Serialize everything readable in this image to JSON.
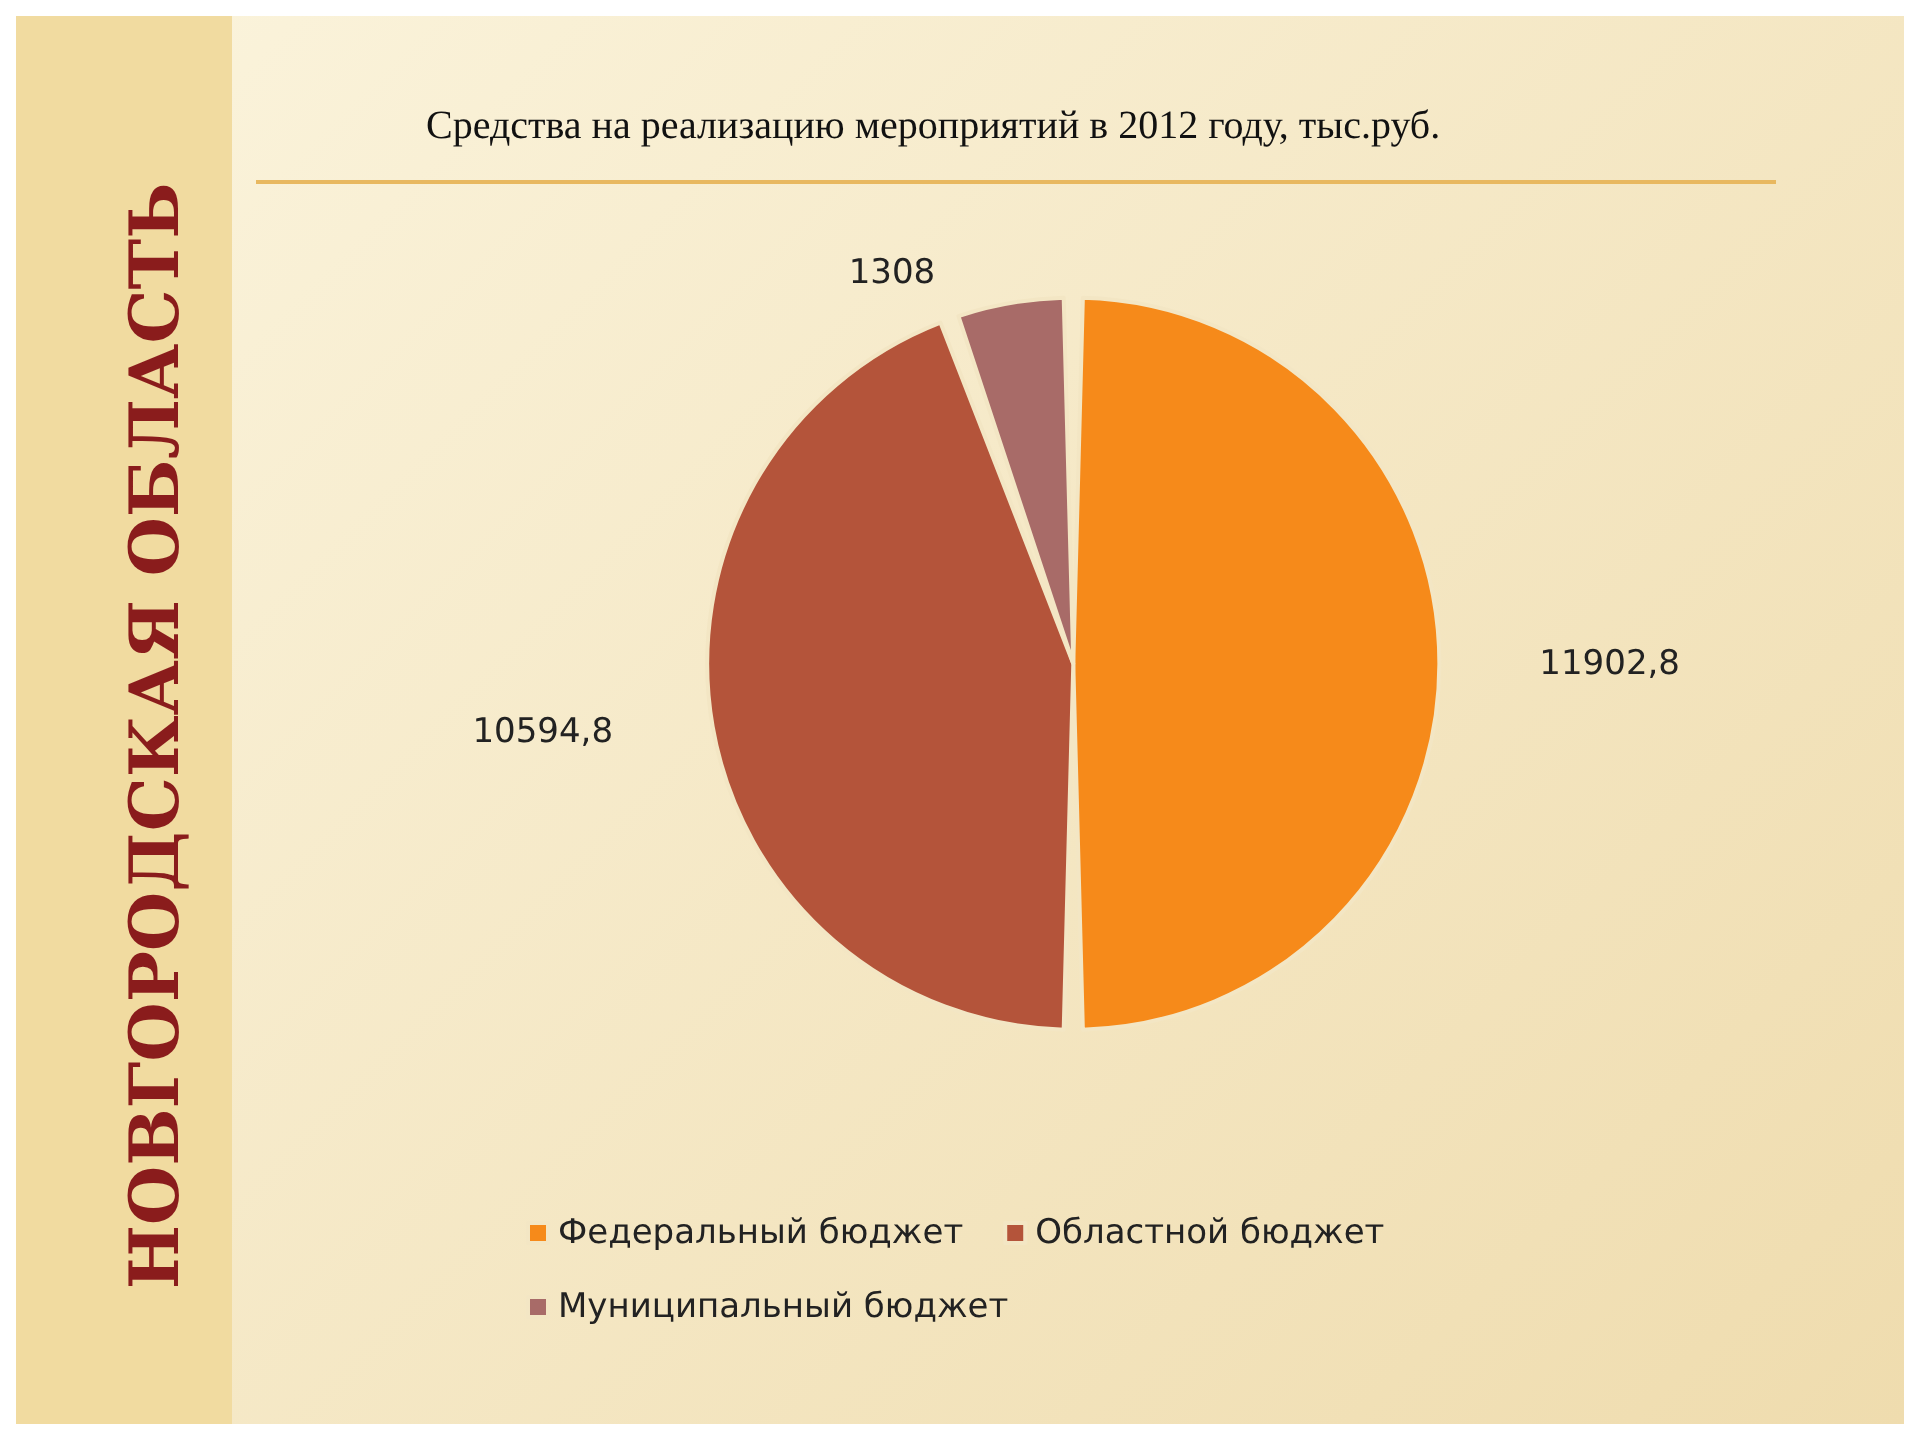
{
  "chart_data": {
    "type": "pie",
    "title": "Средства на реализацию мероприятий в 2012 году, тыс.руб.",
    "categories": [
      "Федеральный бюджет",
      "Областной бюджет",
      "Муниципальный бюджет"
    ],
    "values": [
      11902.8,
      10594.8,
      1308
    ],
    "value_labels": [
      "11902,8",
      "10594,8",
      "1308"
    ],
    "colors": [
      "#f68a1a",
      "#b4543a",
      "#a86b68"
    ],
    "legend": "bottom",
    "annotations": [
      "НОВГОРОДСКАЯ ОБЛАСТЬ"
    ]
  }
}
